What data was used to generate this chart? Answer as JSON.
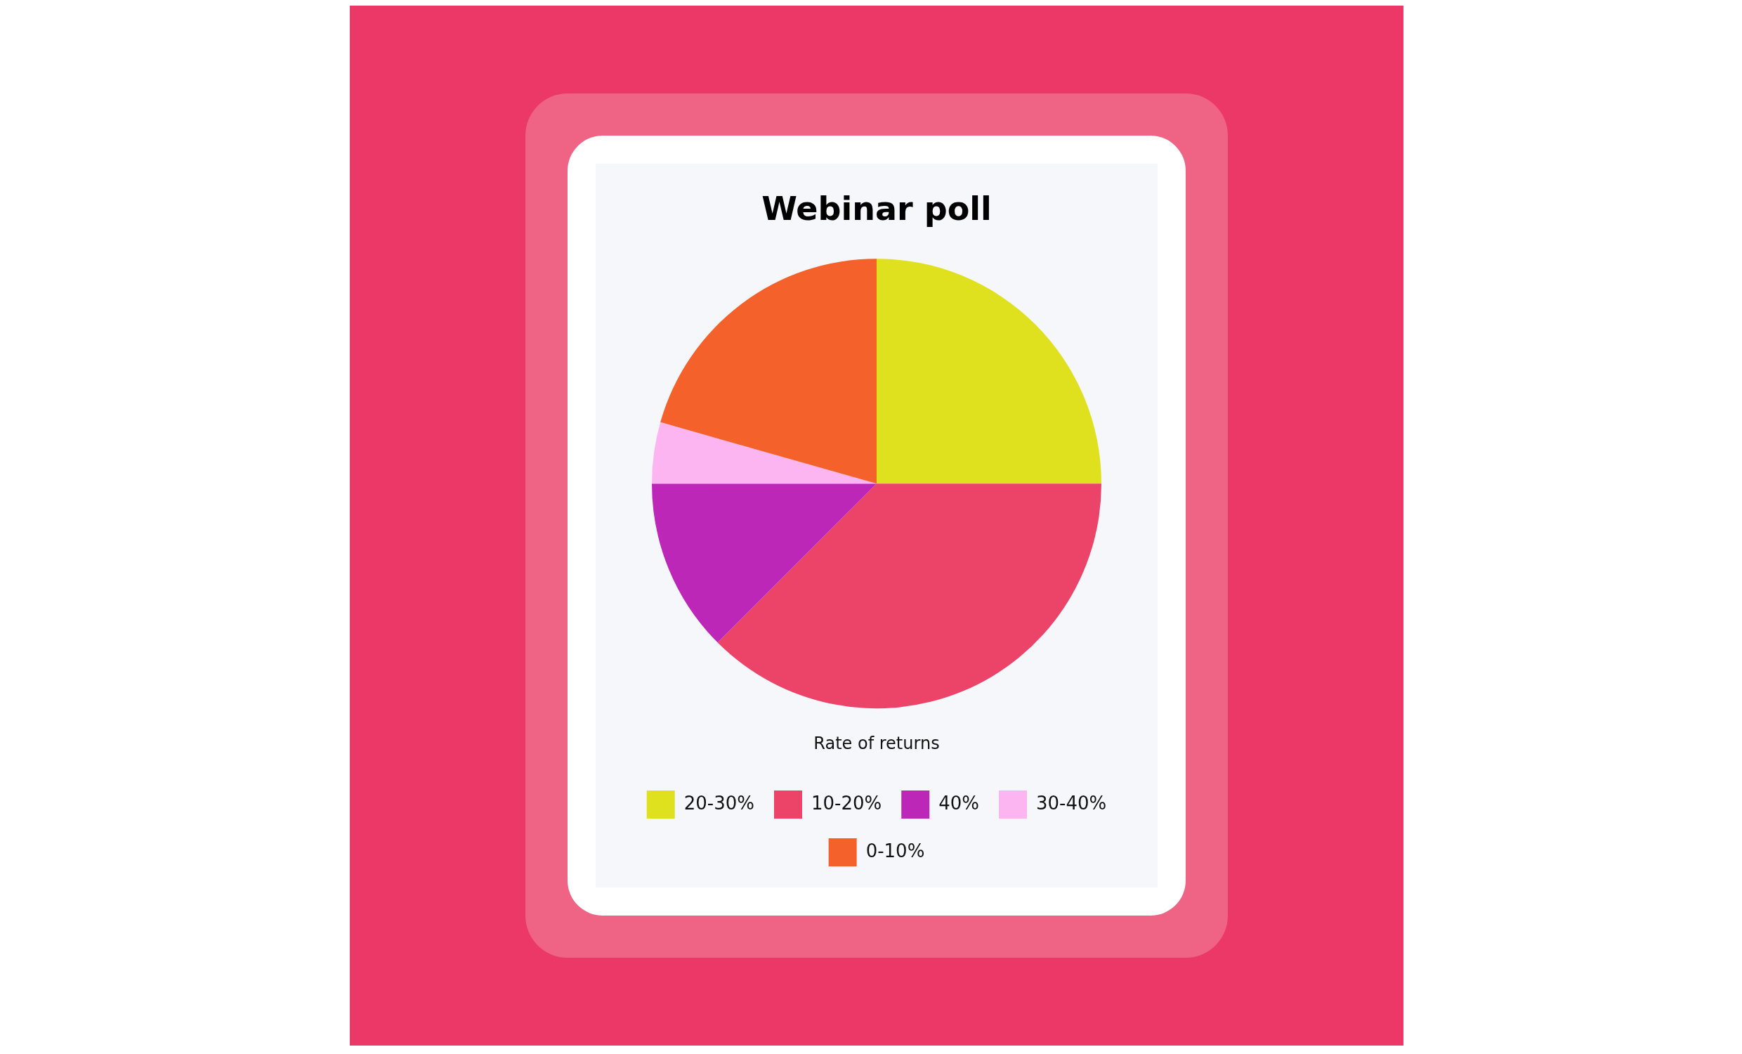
{
  "chart_data": {
    "type": "pie",
    "title": "Webinar poll",
    "legend_title": "Rate of returns",
    "legend": "bottom",
    "categories": [
      "20-30%",
      "10-20%",
      "40%",
      "30-40%",
      "0-10%"
    ],
    "values": [
      25,
      37.5,
      12.5,
      4.4,
      20.6
    ],
    "colors": [
      "#dfe11e",
      "#ec4468",
      "#bd27b7",
      "#fdb5f2",
      "#f5612a"
    ]
  }
}
